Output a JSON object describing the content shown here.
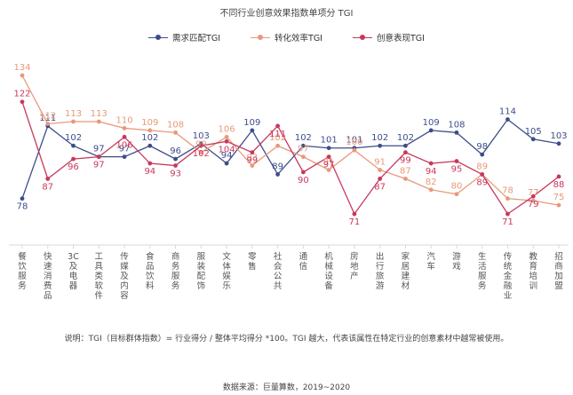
{
  "title": "不同行业创意效果指数单项分 TGI",
  "note": "说明：TGI（目标群体指数）= 行业得分 / 整体平均得分 *100。TGI 越大，代表该属性在特定行业的创意素材中越常被使用。",
  "source": "数据来源：巨量算数，2019~2020",
  "chart_data": {
    "type": "line",
    "categories": [
      "餐饮服务",
      "快速消费品",
      "3C及电器",
      "工具类软件",
      "传媒及内容",
      "食品饮料",
      "商务服务",
      "服装配饰",
      "文体娱乐",
      "零售",
      "社会公共",
      "通信",
      "机械设备",
      "房地产",
      "出行旅游",
      "家居建材",
      "汽车",
      "游戏",
      "生活服务",
      "传统金融业",
      "教育培训",
      "招商加盟"
    ],
    "legend_position": "top-center",
    "grid": false,
    "series": [
      {
        "name": "需求匹配TGI",
        "color": "#3d4d8a",
        "values": [
          78,
          111,
          102,
          97,
          97,
          102,
          96,
          103,
          94,
          109,
          89,
          102,
          101,
          101,
          102,
          102,
          109,
          108,
          98,
          114,
          105,
          103
        ]
      },
      {
        "name": "转化效率TGI",
        "color": "#e8997a",
        "values": [
          134,
          112,
          113,
          113,
          110,
          109,
          108,
          99,
          106,
          93,
          102,
          97,
          91,
          100,
          91,
          87,
          82,
          80,
          89,
          78,
          77,
          75
        ]
      },
      {
        "name": "创意表现TGI",
        "color": "#c8385c",
        "values": [
          122,
          87,
          96,
          97,
          106,
          94,
          93,
          102,
          104,
          99,
          111,
          90,
          97,
          71,
          87,
          99,
          94,
          95,
          89,
          71,
          79,
          88
        ]
      }
    ]
  }
}
